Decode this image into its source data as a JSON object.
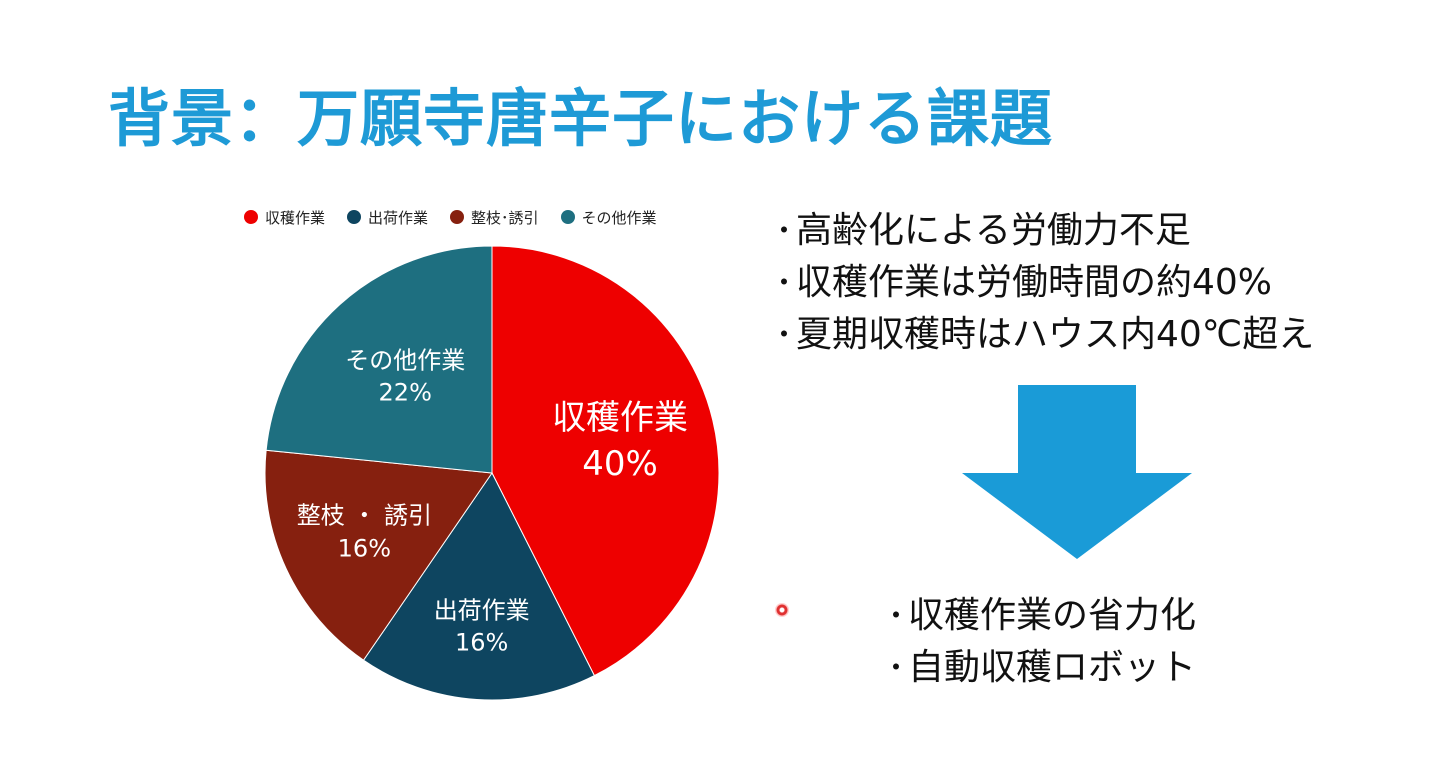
{
  "title": "背景：万願寺唐辛子における課題",
  "chart_data": {
    "type": "pie",
    "categories": [
      "収穫作業",
      "出荷作業",
      "整枝・誘引",
      "その他作業"
    ],
    "legend_labels": [
      "収穫作業",
      "出荷作業",
      "整枝･誘引",
      "その他作業"
    ],
    "slice_labels": [
      "収穫作業",
      "出荷作業",
      "整枝 ・ 誘引",
      "その他作業"
    ],
    "values": [
      40,
      16,
      16,
      22
    ],
    "value_labels": [
      "40%",
      "16%",
      "16%",
      "22%"
    ],
    "colors": [
      "#ee0000",
      "#0e4560",
      "#86200f",
      "#1e6f80"
    ],
    "legend": "top"
  },
  "bullets": [
    "高齢化による労働力不足",
    "収穫作業は労働時間の約40%",
    "夏期収穫時はハウス内40℃超え"
  ],
  "bullet_mark": "・",
  "arrow_color": "#1a9bd7",
  "results": [
    "収穫作業の省力化",
    "自動収穫ロボット"
  ]
}
